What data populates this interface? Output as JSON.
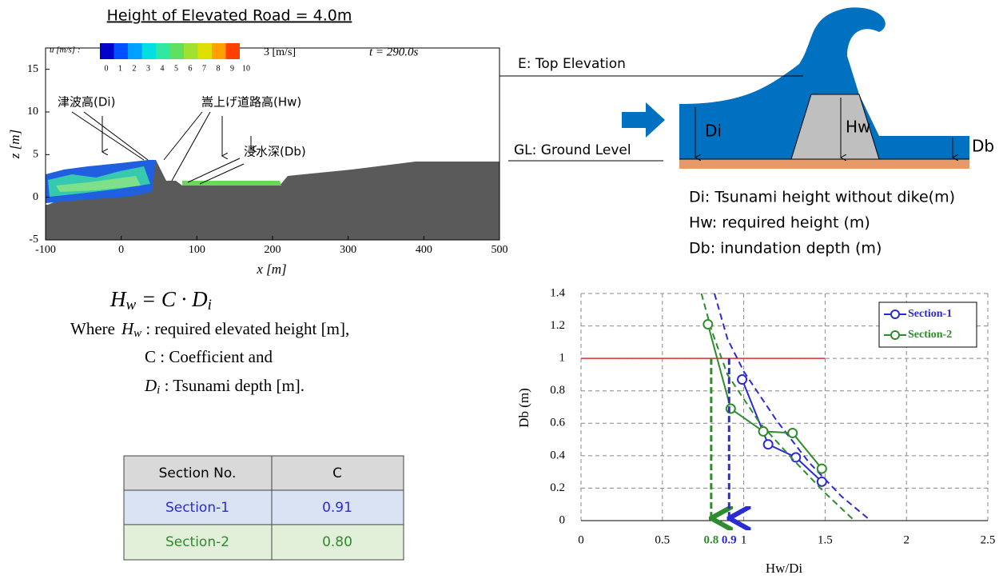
{
  "simulation": {
    "title": "Height of Elevated Road = 4.0m",
    "colorbar_label": "u [m/s] :",
    "colorbar_ticks": [
      0,
      1,
      2,
      3,
      4,
      5,
      6,
      7,
      8,
      9,
      10
    ],
    "scale_label": "3 [m/s]",
    "time_label": "t = 290.0s",
    "annotations": [
      "津波高(Di)",
      "嵩上げ道路高(Hw)",
      "浸水深(Db)"
    ],
    "xlabel": "x [m]",
    "ylabel": "z [m]",
    "xlim": [
      -100,
      500
    ],
    "xticks": [
      -100,
      0,
      100,
      200,
      300,
      400,
      500
    ],
    "ylim": [
      -5,
      17.5
    ],
    "yticks": [
      -5,
      0,
      5,
      10,
      15
    ]
  },
  "diagram": {
    "top_label": "E: Top Elevation",
    "ground_label": "GL: Ground Level",
    "di": "Di",
    "hw": "Hw",
    "db": "Db",
    "legend": [
      "Di: Tsunami height without dike(m)",
      "Hw: required height (m)",
      "Db: inundation depth (m)"
    ]
  },
  "equation": {
    "lhs": "H",
    "lhs_sub": "w",
    "rhs": " = C · D",
    "rhs_sub": "i"
  },
  "where": {
    "prefix": "Where",
    "items": [
      {
        "symbol": "H",
        "sub": "w",
        "text": " : required elevated height [m],"
      },
      {
        "symbol": "C",
        "text": " : Coefficient and"
      },
      {
        "symbol": "D",
        "sub": "i",
        "text": " : Tsunami depth [m]."
      }
    ]
  },
  "table": {
    "header": [
      "Section No.",
      "C"
    ],
    "rows": [
      [
        "Section-1",
        "0.91"
      ],
      [
        "Section-2",
        "0.80"
      ]
    ]
  },
  "chart_data": {
    "type": "line",
    "xlabel": "Hw/Di",
    "ylabel": "Db (m)",
    "xlim": [
      0,
      2.5
    ],
    "xticks": [
      0,
      0.5,
      1,
      1.5,
      2,
      2.5
    ],
    "ylim": [
      0,
      1.4
    ],
    "yticks": [
      0,
      0.2,
      0.4,
      0.6,
      0.8,
      1,
      1.2,
      1.4
    ],
    "grid": true,
    "legend": "upper right",
    "reference_line": {
      "value": 1,
      "color": "#e03030"
    },
    "series": [
      {
        "name": "Section-1",
        "color": "#2b2bd6",
        "x": [
          0.99,
          1.15,
          1.32,
          1.48
        ],
        "values": [
          0.87,
          0.47,
          0.39,
          0.24
        ],
        "trend_x": [
          0.82,
          0.9,
          1.0,
          1.2,
          1.4,
          1.6,
          1.78
        ],
        "trend_values": [
          1.4,
          1.12,
          0.92,
          0.62,
          0.36,
          0.15,
          0
        ]
      },
      {
        "name": "Section-2",
        "color": "#2e8b2e",
        "x": [
          0.78,
          0.92,
          1.12,
          1.3,
          1.48
        ],
        "values": [
          1.21,
          0.69,
          0.55,
          0.54,
          0.32
        ],
        "trend_x": [
          0.74,
          0.8,
          0.9,
          1.1,
          1.3,
          1.5,
          1.68
        ],
        "trend_values": [
          1.4,
          1.18,
          0.9,
          0.6,
          0.38,
          0.17,
          0
        ]
      }
    ],
    "markers": [
      {
        "value": 0.8,
        "label": "0.8",
        "color": "#2e8b2e"
      },
      {
        "value": 0.91,
        "label": "0.9",
        "color": "#2b2bd6"
      }
    ]
  }
}
